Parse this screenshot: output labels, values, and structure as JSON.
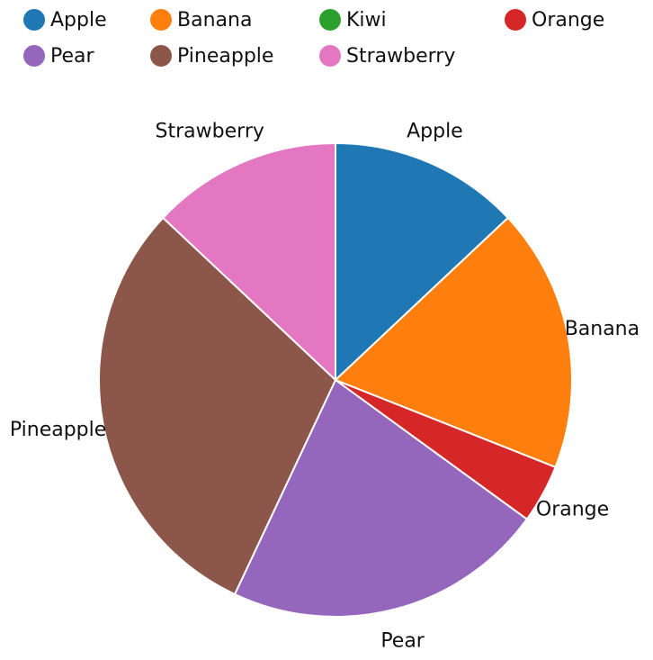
{
  "chart_data": {
    "type": "pie",
    "title": "",
    "legend_position": "top",
    "slices": [
      {
        "label": "Apple",
        "value": 13,
        "color": "#1f77b4"
      },
      {
        "label": "Banana",
        "value": 18,
        "color": "#ff7f0e"
      },
      {
        "label": "Kiwi",
        "value": 0,
        "color": "#2ca02c"
      },
      {
        "label": "Orange",
        "value": 4,
        "color": "#d62728"
      },
      {
        "label": "Pear",
        "value": 22,
        "color": "#9467bd"
      },
      {
        "label": "Pineapple",
        "value": 30,
        "color": "#8c564b"
      },
      {
        "label": "Strawberry",
        "value": 13,
        "color": "#e377c2"
      }
    ]
  }
}
